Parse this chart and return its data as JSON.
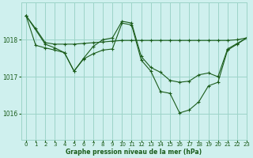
{
  "title": "Graphe pression niveau de la mer (hPa)",
  "bg_color": "#cff0ee",
  "grid_color": "#9dd4c8",
  "line_color": "#1a5c1a",
  "xlim": [
    -0.5,
    23
  ],
  "ylim": [
    1015.3,
    1019.0
  ],
  "yticks": [
    1016,
    1017,
    1018
  ],
  "xticks": [
    0,
    1,
    2,
    3,
    4,
    5,
    6,
    7,
    8,
    9,
    10,
    11,
    12,
    13,
    14,
    15,
    16,
    17,
    18,
    19,
    20,
    21,
    22,
    23
  ],
  "series": [
    {
      "x": [
        0,
        1,
        2,
        3,
        4,
        5,
        6,
        7,
        8,
        9,
        10,
        11,
        12,
        13,
        14,
        15,
        16,
        17,
        18,
        19,
        20,
        21,
        22,
        23
      ],
      "y": [
        1018.65,
        1018.3,
        1017.92,
        1017.88,
        1017.88,
        1017.88,
        1017.9,
        1017.92,
        1017.94,
        1017.96,
        1017.98,
        1017.98,
        1017.98,
        1017.98,
        1017.98,
        1017.98,
        1017.98,
        1017.98,
        1017.98,
        1017.98,
        1017.98,
        1017.98,
        1018.0,
        1018.05
      ],
      "dashed": false,
      "marker": true
    },
    {
      "x": [
        0,
        1,
        2,
        3,
        4,
        5,
        6,
        7,
        8,
        9,
        10,
        11,
        12,
        13,
        14,
        15,
        16,
        17,
        18,
        19,
        20,
        21,
        22,
        23
      ],
      "y": [
        1018.65,
        1017.85,
        1017.78,
        1017.72,
        1017.65,
        1017.15,
        1017.5,
        1017.82,
        1018.0,
        1018.05,
        1018.5,
        1018.45,
        1017.55,
        1017.25,
        1017.12,
        1016.9,
        1016.85,
        1016.88,
        1017.05,
        1017.1,
        1017.0,
        1017.75,
        1017.9,
        1018.05
      ],
      "dashed": false,
      "marker": true
    },
    {
      "x": [
        0,
        2,
        3,
        4,
        5,
        6,
        7,
        8,
        9,
        10,
        11,
        12,
        13,
        14,
        15,
        16,
        17,
        18,
        19,
        20,
        21,
        22,
        23
      ],
      "y": [
        1018.65,
        1017.88,
        1017.78,
        1017.65,
        1017.15,
        1017.48,
        1017.62,
        1017.72,
        1017.75,
        1018.45,
        1018.4,
        1017.45,
        1017.15,
        1016.6,
        1016.55,
        1016.02,
        1016.1,
        1016.32,
        1016.75,
        1016.85,
        1017.72,
        1017.88,
        1018.05
      ],
      "dashed": false,
      "marker": true
    }
  ]
}
